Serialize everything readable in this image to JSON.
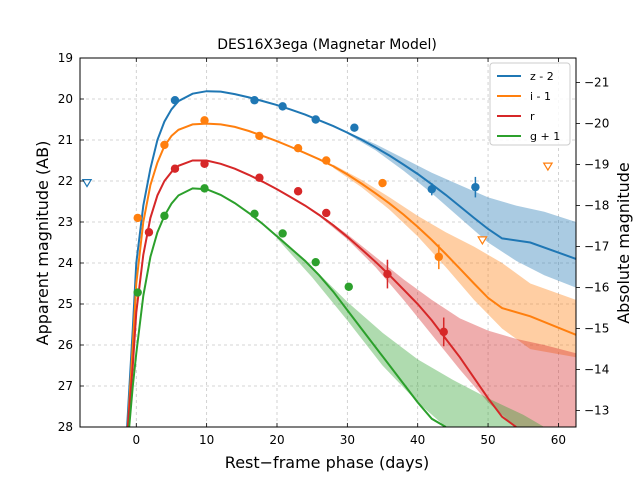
{
  "chart_data": {
    "type": "line",
    "title": "DES16X3ega (Magnetar Model)",
    "xlabel": "Rest−frame phase (days)",
    "ylabel": "Apparent magnitude (AB)",
    "y2label": "Absolute magnitude",
    "xlim": [
      -8,
      62.5
    ],
    "ylim": [
      28,
      19
    ],
    "y2lim": [
      -12.6,
      -21.6
    ],
    "xticks": [
      0,
      10,
      20,
      30,
      40,
      50,
      60
    ],
    "yticks": [
      19,
      20,
      21,
      22,
      23,
      24,
      25,
      26,
      27,
      28
    ],
    "y2ticks": [
      -13,
      -14,
      -15,
      -16,
      -17,
      -18,
      -19,
      -20,
      -21
    ],
    "grid": true,
    "legend_position": "top-right",
    "series": [
      {
        "name": "z - 2",
        "color": "#1f77b4",
        "points": [
          [
            5.5,
            20.03
          ],
          [
            16.8,
            20.03
          ],
          [
            20.8,
            20.18
          ],
          [
            25.5,
            20.5
          ],
          [
            31.0,
            20.7
          ],
          [
            42.0,
            22.2
          ],
          [
            48.2,
            22.15
          ]
        ],
        "errors": [
          0.05,
          0.05,
          0.05,
          0.08,
          0.07,
          0.15,
          0.25
        ],
        "upper_limits": [
          [
            -7.0,
            22.05
          ]
        ],
        "model": [
          [
            -1.3,
            28
          ],
          [
            -0.5,
            25.6
          ],
          [
            0,
            24.0
          ],
          [
            1,
            22.6
          ],
          [
            2,
            21.7
          ],
          [
            3,
            21.0
          ],
          [
            4,
            20.55
          ],
          [
            5,
            20.25
          ],
          [
            6,
            20.05
          ],
          [
            8,
            19.87
          ],
          [
            10,
            19.81
          ],
          [
            12,
            19.82
          ],
          [
            14,
            19.88
          ],
          [
            16,
            19.96
          ],
          [
            18,
            20.05
          ],
          [
            20,
            20.15
          ],
          [
            22,
            20.26
          ],
          [
            24,
            20.38
          ],
          [
            26,
            20.52
          ],
          [
            28,
            20.66
          ],
          [
            30,
            20.82
          ],
          [
            32,
            20.99
          ],
          [
            34,
            21.18
          ],
          [
            36,
            21.38
          ],
          [
            38,
            21.6
          ],
          [
            40,
            21.83
          ],
          [
            42,
            22.08
          ],
          [
            44,
            22.34
          ],
          [
            46,
            22.62
          ],
          [
            48,
            22.9
          ],
          [
            50,
            23.17
          ],
          [
            52,
            23.4
          ],
          [
            56,
            23.5
          ],
          [
            62.5,
            23.9
          ]
        ],
        "band_upper": [
          [
            30,
            20.8
          ],
          [
            34,
            21.1
          ],
          [
            38,
            21.45
          ],
          [
            42,
            21.8
          ],
          [
            46,
            22.1
          ],
          [
            50,
            22.4
          ],
          [
            54,
            22.6
          ],
          [
            58,
            22.75
          ],
          [
            62.5,
            23.0
          ]
        ],
        "band_lower": [
          [
            30,
            20.85
          ],
          [
            34,
            21.25
          ],
          [
            38,
            21.75
          ],
          [
            42,
            22.3
          ],
          [
            46,
            22.9
          ],
          [
            50,
            23.5
          ],
          [
            54,
            23.95
          ],
          [
            58,
            24.3
          ],
          [
            62.5,
            24.6
          ]
        ]
      },
      {
        "name": "i - 1",
        "color": "#ff7f0e",
        "points": [
          [
            0.2,
            22.9
          ],
          [
            4.0,
            21.12
          ],
          [
            9.7,
            20.52
          ],
          [
            17.5,
            20.9
          ],
          [
            23.0,
            21.2
          ],
          [
            27.0,
            21.5
          ],
          [
            35.0,
            22.05
          ],
          [
            43.0,
            23.85
          ]
        ],
        "errors": [
          0.05,
          0.05,
          0.05,
          0.05,
          0.05,
          0.06,
          0.07,
          0.3
        ],
        "upper_limits": [
          [
            49.2,
            23.45
          ],
          [
            58.5,
            21.65
          ]
        ],
        "model": [
          [
            -1.2,
            28
          ],
          [
            -0.5,
            26.0
          ],
          [
            0,
            24.5
          ],
          [
            1,
            23.0
          ],
          [
            2,
            22.1
          ],
          [
            3,
            21.55
          ],
          [
            4,
            21.15
          ],
          [
            5,
            20.9
          ],
          [
            6,
            20.75
          ],
          [
            8,
            20.62
          ],
          [
            10,
            20.6
          ],
          [
            12,
            20.62
          ],
          [
            14,
            20.68
          ],
          [
            16,
            20.78
          ],
          [
            18,
            20.9
          ],
          [
            20,
            21.03
          ],
          [
            22,
            21.17
          ],
          [
            24,
            21.32
          ],
          [
            26,
            21.47
          ],
          [
            28,
            21.64
          ],
          [
            30,
            21.84
          ],
          [
            32,
            22.06
          ],
          [
            34,
            22.3
          ],
          [
            36,
            22.55
          ],
          [
            38,
            22.82
          ],
          [
            40,
            23.12
          ],
          [
            42,
            23.44
          ],
          [
            44,
            23.78
          ],
          [
            46,
            24.14
          ],
          [
            48,
            24.5
          ],
          [
            50,
            24.85
          ],
          [
            52,
            25.1
          ],
          [
            56,
            25.3
          ],
          [
            62.5,
            25.75
          ]
        ],
        "band_upper": [
          [
            28,
            21.6
          ],
          [
            32,
            21.97
          ],
          [
            36,
            22.4
          ],
          [
            40,
            22.85
          ],
          [
            44,
            23.25
          ],
          [
            48,
            23.6
          ],
          [
            52,
            24.0
          ],
          [
            56,
            24.5
          ],
          [
            62.5,
            24.9
          ]
        ],
        "band_lower": [
          [
            28,
            21.68
          ],
          [
            32,
            22.15
          ],
          [
            36,
            22.7
          ],
          [
            40,
            23.35
          ],
          [
            44,
            24.1
          ],
          [
            48,
            24.9
          ],
          [
            52,
            25.6
          ],
          [
            56,
            26.1
          ],
          [
            62.5,
            26.3
          ]
        ]
      },
      {
        "name": "r",
        "color": "#d62728",
        "points": [
          [
            1.8,
            23.25
          ],
          [
            5.5,
            21.7
          ],
          [
            9.7,
            21.58
          ],
          [
            17.5,
            21.92
          ],
          [
            23.0,
            22.25
          ],
          [
            27.0,
            22.78
          ],
          [
            35.7,
            24.27
          ],
          [
            43.7,
            25.68
          ]
        ],
        "errors": [
          0.05,
          0.05,
          0.05,
          0.06,
          0.06,
          0.06,
          0.35,
          0.35
        ],
        "upper_limits": [],
        "model": [
          [
            -1.2,
            28
          ],
          [
            -0.5,
            26.5
          ],
          [
            0,
            25.2
          ],
          [
            1,
            23.8
          ],
          [
            2,
            22.9
          ],
          [
            3,
            22.35
          ],
          [
            4,
            22.0
          ],
          [
            5,
            21.78
          ],
          [
            6,
            21.63
          ],
          [
            8,
            21.5
          ],
          [
            10,
            21.5
          ],
          [
            12,
            21.58
          ],
          [
            14,
            21.7
          ],
          [
            16,
            21.85
          ],
          [
            18,
            22.02
          ],
          [
            20,
            22.2
          ],
          [
            22,
            22.4
          ],
          [
            24,
            22.6
          ],
          [
            26,
            22.83
          ],
          [
            28,
            23.08
          ],
          [
            30,
            23.36
          ],
          [
            32,
            23.66
          ],
          [
            34,
            23.97
          ],
          [
            36,
            24.3
          ],
          [
            38,
            24.65
          ],
          [
            40,
            25.0
          ],
          [
            42,
            25.4
          ],
          [
            44,
            25.85
          ],
          [
            46,
            26.3
          ],
          [
            48,
            26.8
          ],
          [
            50,
            27.3
          ],
          [
            52,
            27.75
          ],
          [
            54,
            28.0
          ]
        ],
        "band_upper": [
          [
            26,
            22.8
          ],
          [
            30,
            23.3
          ],
          [
            34,
            23.85
          ],
          [
            38,
            24.4
          ],
          [
            42,
            24.9
          ],
          [
            46,
            25.35
          ],
          [
            50,
            25.65
          ],
          [
            54,
            25.85
          ],
          [
            58,
            26.0
          ],
          [
            62.5,
            26.2
          ]
        ],
        "band_lower": [
          [
            26,
            22.86
          ],
          [
            30,
            23.42
          ],
          [
            34,
            24.1
          ],
          [
            38,
            24.9
          ],
          [
            42,
            25.75
          ],
          [
            46,
            26.6
          ],
          [
            50,
            27.4
          ],
          [
            54,
            28.0
          ],
          [
            62.5,
            28.0
          ]
        ]
      },
      {
        "name": "g + 1",
        "color": "#2ca02c",
        "points": [
          [
            0.2,
            24.72
          ],
          [
            4.0,
            22.85
          ],
          [
            9.7,
            22.18
          ],
          [
            16.8,
            22.8
          ],
          [
            20.8,
            23.28
          ],
          [
            25.5,
            23.98
          ],
          [
            30.2,
            24.58
          ]
        ],
        "errors": [
          0.05,
          0.05,
          0.05,
          0.05,
          0.05,
          0.05,
          0.08
        ],
        "upper_limits": [],
        "model": [
          [
            -1.0,
            28
          ],
          [
            -0.5,
            27.0
          ],
          [
            0,
            26.2
          ],
          [
            1,
            24.8
          ],
          [
            2,
            23.85
          ],
          [
            3,
            23.25
          ],
          [
            4,
            22.85
          ],
          [
            5,
            22.55
          ],
          [
            6,
            22.35
          ],
          [
            8,
            22.18
          ],
          [
            10,
            22.2
          ],
          [
            12,
            22.34
          ],
          [
            14,
            22.54
          ],
          [
            16,
            22.78
          ],
          [
            18,
            23.05
          ],
          [
            20,
            23.35
          ],
          [
            22,
            23.65
          ],
          [
            24,
            23.95
          ],
          [
            26,
            24.3
          ],
          [
            28,
            24.7
          ],
          [
            30,
            25.15
          ],
          [
            32,
            25.6
          ],
          [
            34,
            26.05
          ],
          [
            36,
            26.5
          ],
          [
            38,
            26.95
          ],
          [
            40,
            27.4
          ],
          [
            42,
            27.8
          ],
          [
            44,
            28.0
          ]
        ],
        "band_upper": [
          [
            20,
            23.3
          ],
          [
            25,
            24.1
          ],
          [
            30,
            24.95
          ],
          [
            35,
            25.7
          ],
          [
            40,
            26.35
          ],
          [
            45,
            26.85
          ],
          [
            50,
            27.3
          ],
          [
            55,
            27.7
          ],
          [
            58,
            28.0
          ]
        ],
        "band_lower": [
          [
            20,
            23.4
          ],
          [
            25,
            24.35
          ],
          [
            30,
            25.4
          ],
          [
            35,
            26.5
          ],
          [
            40,
            27.4
          ],
          [
            44,
            28.0
          ]
        ]
      }
    ]
  }
}
